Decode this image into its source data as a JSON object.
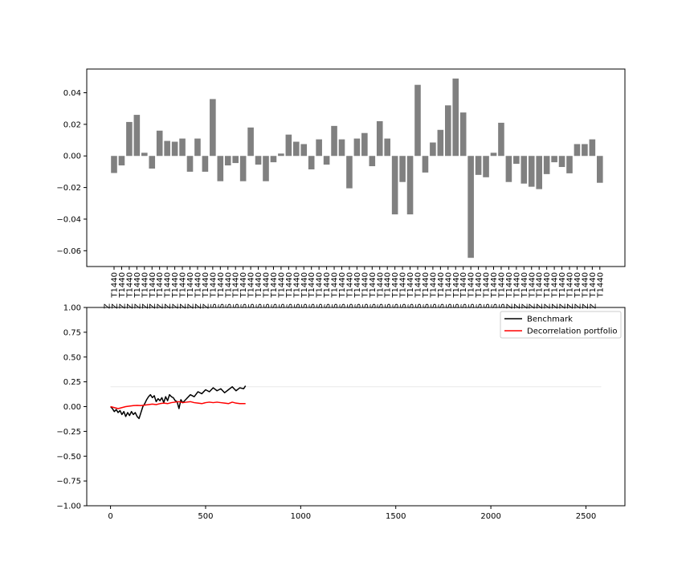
{
  "chart_data": [
    {
      "type": "bar",
      "title": "",
      "xlabel": "",
      "ylabel": "",
      "ylim": [
        -0.07,
        0.055
      ],
      "yticks": [
        -0.06,
        -0.04,
        -0.02,
        0.0,
        0.02,
        0.04
      ],
      "ytick_labels": [
        "−0.06",
        "−0.04",
        "−0.02",
        "0.00",
        "0.02",
        "0.04"
      ],
      "bar_color": "#808080",
      "categories": [
        "T1440",
        "T1440",
        "T1440",
        "T1440",
        "T1440",
        "T1440",
        "T1440",
        "T1440",
        "T1440",
        "T1440",
        "T1440",
        "T1440",
        "T1440",
        "T1440",
        "T1440",
        "T1440",
        "T1440",
        "T1440",
        "T1440",
        "T1440",
        "T1440",
        "T1440",
        "T1440",
        "T1440",
        "T1440",
        "T1440",
        "T1440",
        "T1440",
        "T1440",
        "T1440",
        "T1440",
        "T1440",
        "T1440",
        "T1440",
        "T1440",
        "T1440",
        "T1440",
        "T1440",
        "T1440",
        "T1440",
        "T1440",
        "T1440",
        "T1440",
        "T1440",
        "T1440",
        "T1440",
        "T1440",
        "T1440",
        "T1440",
        "T1440",
        "T1440",
        "T1440",
        "T1440",
        "T1440",
        "T1440",
        "T1440",
        "T1440",
        "T1440",
        "T1440",
        "T1440",
        "T1440",
        "T1440",
        "T1440",
        "T1440",
        "T1440"
      ],
      "category_prefixes": [
        "Z",
        "Z",
        "Z",
        "Z",
        "Z",
        "Z",
        "Z",
        "Z",
        "Z",
        "Z",
        "Z",
        "Z",
        "Z",
        "Z",
        "S",
        "S",
        "S",
        "S",
        "S",
        "S",
        "S",
        "S",
        "S",
        "S",
        "S",
        "S",
        "S",
        "S",
        "S",
        "S",
        "S",
        "S",
        "S",
        "S",
        "S",
        "S",
        "S",
        "S",
        "S",
        "S",
        "S",
        "S",
        "S",
        "S",
        "S",
        "S",
        "S",
        "S",
        "S",
        "S",
        "S",
        "S",
        "S",
        "Z",
        "Z",
        "Z",
        "Z",
        "Z",
        "Z",
        "Z",
        "Z",
        "Z",
        "Z",
        "Z",
        "Z"
      ],
      "values": [
        -0.0108,
        -0.006,
        0.0215,
        0.026,
        0.002,
        -0.008,
        0.016,
        0.0095,
        0.009,
        0.011,
        -0.01,
        0.011,
        -0.01,
        0.036,
        -0.016,
        -0.006,
        -0.0045,
        -0.016,
        0.018,
        -0.0055,
        -0.016,
        -0.004,
        0.0015,
        0.0135,
        0.009,
        0.0075,
        -0.0085,
        0.0105,
        -0.0055,
        0.019,
        0.0105,
        -0.0205,
        0.011,
        0.0145,
        -0.0065,
        0.022,
        0.011,
        -0.037,
        -0.0165,
        -0.037,
        0.045,
        -0.0105,
        0.0085,
        0.0165,
        0.032,
        0.049,
        0.0275,
        -0.0645,
        -0.012,
        -0.0135,
        0.002,
        0.021,
        -0.0165,
        -0.005,
        -0.0175,
        -0.0195,
        -0.021,
        -0.0115,
        -0.004,
        -0.007,
        -0.011,
        0.0075,
        0.0075,
        0.0105,
        -0.017
      ]
    },
    {
      "type": "line",
      "title": "",
      "xlabel": "",
      "ylabel": "",
      "xlim": [
        -125,
        2705
      ],
      "ylim": [
        -1.0,
        1.0
      ],
      "xticks": [
        0,
        500,
        1000,
        1500,
        2000,
        2500
      ],
      "xtick_labels": [
        "0",
        "500",
        "1000",
        "1500",
        "2000",
        "2500"
      ],
      "yticks": [
        -1.0,
        -0.75,
        -0.5,
        -0.25,
        0.0,
        0.25,
        0.5,
        0.75,
        1.0
      ],
      "ytick_labels": [
        "−1.00",
        "−0.75",
        "−0.50",
        "−0.25",
        "0.00",
        "0.25",
        "0.50",
        "0.75",
        "1.00"
      ],
      "legend_position": "top-right",
      "reference_line": {
        "x": [
          0,
          2580
        ],
        "y": [
          0.2,
          0.2
        ],
        "color": "#e8e8e8"
      },
      "series": [
        {
          "name": "Benchmark",
          "color": "#000000",
          "x": [
            0,
            10,
            20,
            30,
            40,
            50,
            60,
            70,
            80,
            90,
            100,
            110,
            120,
            130,
            140,
            150,
            160,
            170,
            180,
            190,
            200,
            210,
            220,
            230,
            240,
            250,
            260,
            270,
            280,
            290,
            300,
            310,
            320,
            330,
            340,
            350,
            360,
            370,
            380,
            390,
            400,
            420,
            440,
            460,
            480,
            500,
            520,
            540,
            560,
            580,
            600,
            620,
            640,
            660,
            680,
            700,
            710
          ],
          "y": [
            0.0,
            -0.02,
            -0.05,
            -0.03,
            -0.06,
            -0.04,
            -0.08,
            -0.05,
            -0.1,
            -0.06,
            -0.09,
            -0.05,
            -0.08,
            -0.06,
            -0.1,
            -0.12,
            -0.06,
            0.0,
            0.03,
            0.07,
            0.1,
            0.12,
            0.09,
            0.11,
            0.05,
            0.08,
            0.06,
            0.09,
            0.04,
            0.1,
            0.06,
            0.12,
            0.1,
            0.09,
            0.06,
            0.05,
            -0.02,
            0.07,
            0.04,
            0.06,
            0.08,
            0.12,
            0.1,
            0.15,
            0.13,
            0.17,
            0.15,
            0.19,
            0.16,
            0.18,
            0.14,
            0.17,
            0.2,
            0.16,
            0.19,
            0.18,
            0.21
          ]
        },
        {
          "name": "Decorrelation portfolio",
          "color": "#ff0000",
          "x": [
            0,
            20,
            40,
            60,
            80,
            100,
            120,
            140,
            160,
            180,
            200,
            220,
            240,
            260,
            280,
            300,
            320,
            340,
            360,
            380,
            400,
            420,
            440,
            460,
            480,
            500,
            520,
            540,
            560,
            580,
            600,
            620,
            640,
            660,
            680,
            700,
            710
          ],
          "y": [
            0.0,
            -0.01,
            -0.02,
            -0.01,
            0.0,
            0.005,
            0.01,
            0.012,
            0.01,
            0.015,
            0.02,
            0.025,
            0.02,
            0.03,
            0.035,
            0.03,
            0.04,
            0.045,
            0.05,
            0.04,
            0.045,
            0.05,
            0.04,
            0.035,
            0.03,
            0.04,
            0.045,
            0.04,
            0.045,
            0.04,
            0.035,
            0.03,
            0.045,
            0.035,
            0.03,
            0.03,
            0.03
          ]
        }
      ]
    }
  ]
}
